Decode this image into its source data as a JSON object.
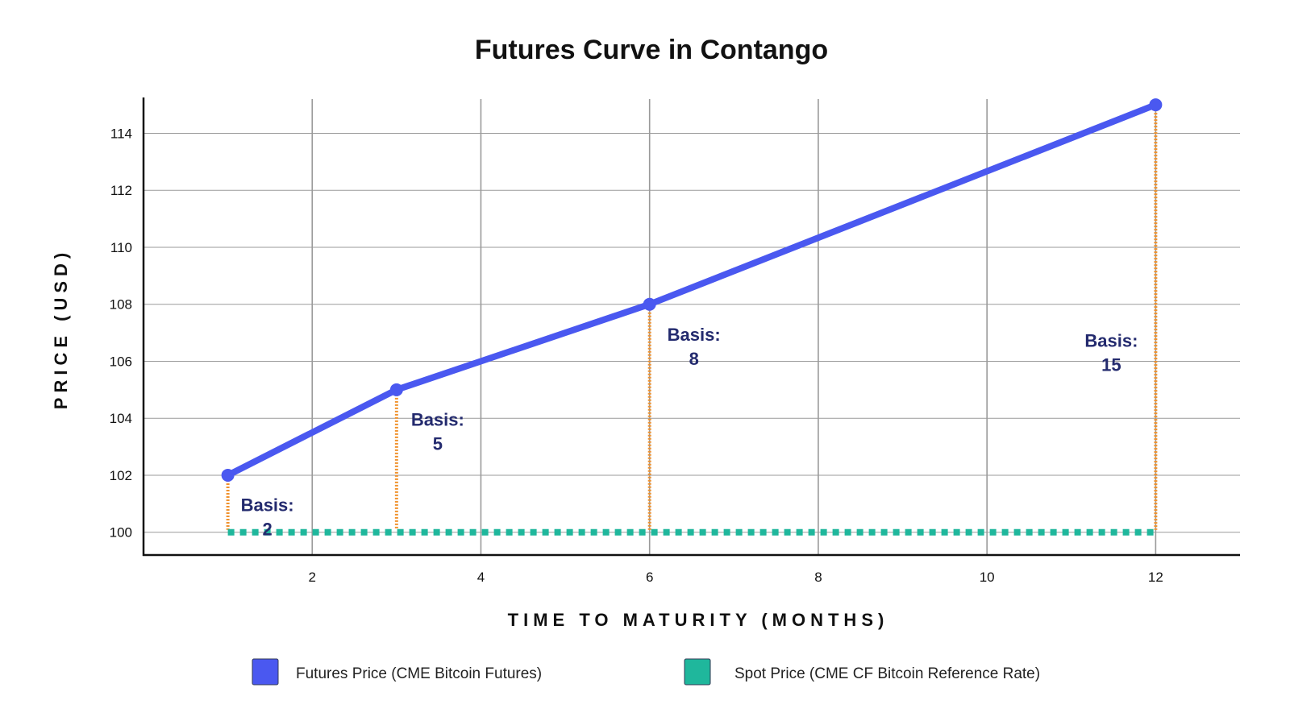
{
  "chart_data": {
    "type": "line",
    "title": "Futures Curve in Contango",
    "xlabel": "TIME TO MATURITY (MONTHS)",
    "ylabel": "PRICE (USD)",
    "xlim": [
      0,
      13
    ],
    "ylim": [
      99.2,
      115.2
    ],
    "x_ticks": [
      2,
      4,
      6,
      8,
      10,
      12
    ],
    "y_ticks": [
      100,
      102,
      104,
      106,
      108,
      110,
      112,
      114
    ],
    "grid": true,
    "legend_position": "bottom",
    "series": [
      {
        "name": "Futures Price (CME Bitcoin Futures)",
        "color": "#4a58f0",
        "x": [
          1,
          3,
          6,
          12
        ],
        "y": [
          102,
          105,
          108,
          115
        ]
      },
      {
        "name": "Spot Price (CME CF Bitcoin Reference Rate)",
        "color": "#1fb79c",
        "style": "dotted",
        "x": [
          1,
          12
        ],
        "y": [
          100,
          100
        ]
      }
    ],
    "annotations": [
      {
        "line1": "Basis:",
        "line2": "2",
        "x": 1,
        "basis": 2
      },
      {
        "line1": "Basis:",
        "line2": "5",
        "x": 3,
        "basis": 5
      },
      {
        "line1": "Basis:",
        "line2": "8",
        "x": 6,
        "basis": 8
      },
      {
        "line1": "Basis:",
        "line2": "15",
        "x": 12,
        "basis": 15
      }
    ],
    "basis_line_color": "#f0922e",
    "grid_color": "#9a9a9a",
    "axis_color": "#111111",
    "annotation_color": "#232a6e"
  }
}
